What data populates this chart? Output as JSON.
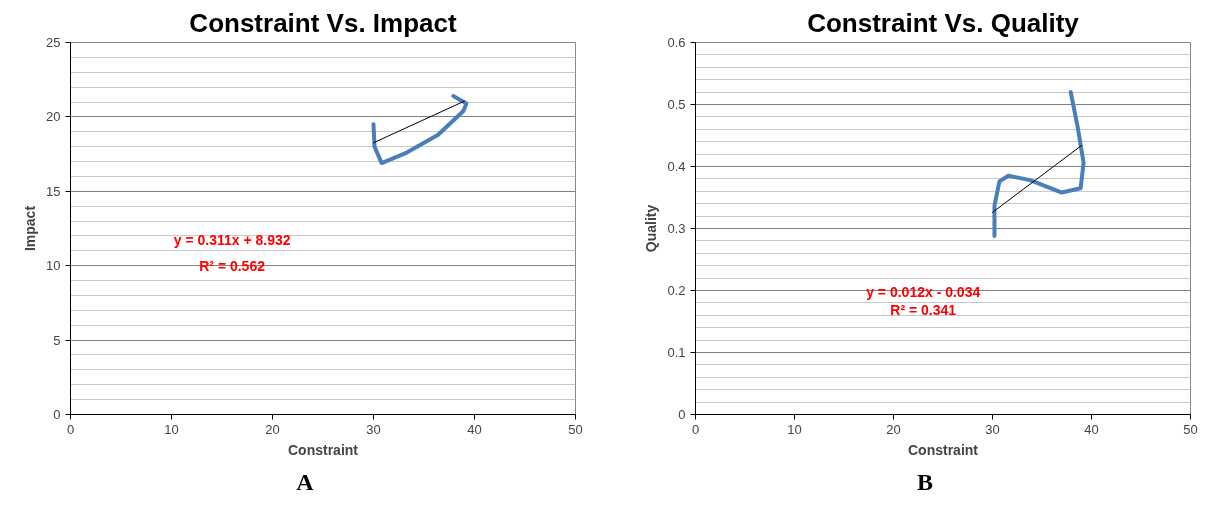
{
  "chart_data": [
    {
      "type": "line",
      "title": "Constraint Vs. Impact",
      "xlabel": "Constraint",
      "ylabel": "Impact",
      "subtitle": "A",
      "xlim": [
        0,
        50
      ],
      "xticks": [
        0,
        10,
        20,
        30,
        40,
        50
      ],
      "ylim": [
        0,
        25
      ],
      "yticks": [
        0,
        5,
        10,
        15,
        20,
        25
      ],
      "grid": "y",
      "line_style": "solid",
      "series": [
        {
          "color": "#4a7ebb",
          "x": [
            30,
            30.1,
            30.8,
            33.3,
            36.4,
            38.9,
            39.2,
            37.9
          ],
          "values": [
            19.5,
            18.0,
            16.9,
            17.6,
            18.8,
            20.4,
            20.9,
            21.4
          ]
        },
        {
          "color": "#000000",
          "x": [
            30,
            39
          ],
          "values": [
            18.26,
            21.06
          ]
        }
      ],
      "annotations": [
        "y = 0.311x + 8.932",
        "R² = 0.562"
      ]
    },
    {
      "type": "line",
      "title": "Constraint Vs. Quality",
      "xlabel": "Constraint",
      "ylabel": "Quality",
      "subtitle": "B",
      "xlim": [
        0,
        50
      ],
      "xticks": [
        0,
        10,
        20,
        30,
        40,
        50
      ],
      "ylim": [
        0,
        0.6
      ],
      "yticks": [
        0,
        0.1,
        0.2,
        0.3,
        0.4,
        0.5,
        0.6
      ],
      "grid": "y",
      "line_style": "solid",
      "series": [
        {
          "color": "#4a7ebb",
          "x": [
            30.2,
            30.2,
            30.7,
            31.6,
            33.8,
            37,
            38.9,
            39.2,
            38.6,
            37.9
          ],
          "values": [
            0.288,
            0.337,
            0.376,
            0.385,
            0.378,
            0.358,
            0.365,
            0.406,
            0.464,
            0.52
          ]
        },
        {
          "color": "#000000",
          "x": [
            30,
            39
          ],
          "values": [
            0.326,
            0.434
          ]
        }
      ],
      "annotations": [
        "y = 0.012x - 0.034",
        "R² = 0.341"
      ]
    }
  ]
}
